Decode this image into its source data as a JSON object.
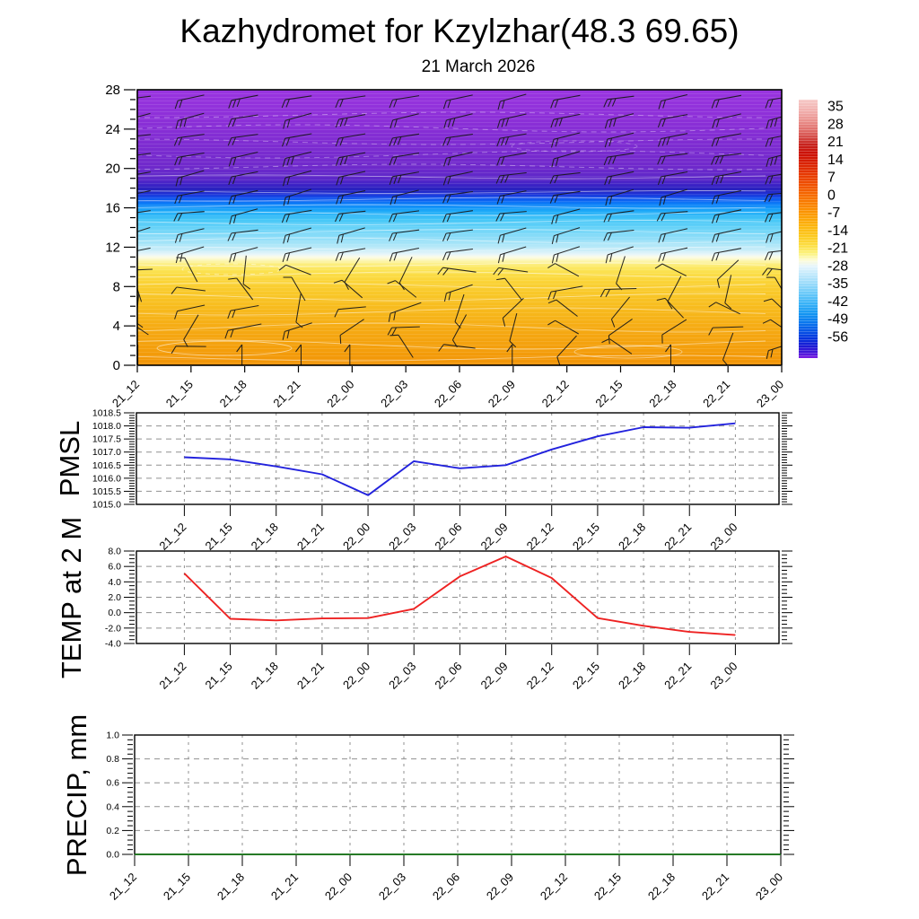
{
  "title": "Kazhydromet for Kzylzhar(48.3 69.65)",
  "subtitle": "21 March 2026",
  "time_labels": [
    "21_12",
    "21_15",
    "21_18",
    "21_21",
    "22_00",
    "22_03",
    "22_06",
    "22_09",
    "22_12",
    "22_15",
    "22_18",
    "22_21",
    "23_00"
  ],
  "chart_data": [
    {
      "type": "heatmap",
      "name": "temperature-height-cross-section",
      "x_labels": [
        "21_12",
        "21_15",
        "21_18",
        "21_21",
        "22_00",
        "22_03",
        "22_06",
        "22_09",
        "22_12",
        "22_15",
        "22_18",
        "22_21",
        "23_00"
      ],
      "ylim": [
        0,
        28
      ],
      "y_tick_labels": [
        "0",
        "4",
        "8",
        "12",
        "16",
        "20",
        "24",
        "28"
      ],
      "grid": false,
      "overlay": "wind-barbs and thin white temperature contour lines",
      "wind_barbs": {
        "columns": 13,
        "rows": 14
      },
      "colorbar": {
        "tick_labels": [
          "35",
          "28",
          "21",
          "14",
          "7",
          "0",
          "-7",
          "-14",
          "-21",
          "-28",
          "-35",
          "-42",
          "-49",
          "-56"
        ],
        "stops": [
          {
            "pos": 0.0,
            "color": "#f6c9c7"
          },
          {
            "pos": 0.045,
            "color": "#f1aeac"
          },
          {
            "pos": 0.085,
            "color": "#e98e8a"
          },
          {
            "pos": 0.12,
            "color": "#df6b67"
          },
          {
            "pos": 0.15,
            "color": "#d24540"
          },
          {
            "pos": 0.175,
            "color": "#c7211c"
          },
          {
            "pos": 0.21,
            "color": "#cc1106"
          },
          {
            "pos": 0.25,
            "color": "#da2404"
          },
          {
            "pos": 0.29,
            "color": "#e73a02"
          },
          {
            "pos": 0.33,
            "color": "#ef5101"
          },
          {
            "pos": 0.37,
            "color": "#f66b00"
          },
          {
            "pos": 0.41,
            "color": "#fa8500"
          },
          {
            "pos": 0.45,
            "color": "#fc9e04"
          },
          {
            "pos": 0.49,
            "color": "#fcb60f"
          },
          {
            "pos": 0.53,
            "color": "#fcca20"
          },
          {
            "pos": 0.565,
            "color": "#fcdf45"
          },
          {
            "pos": 0.595,
            "color": "#fcf27e"
          },
          {
            "pos": 0.622,
            "color": "#fdfcd8"
          },
          {
            "pos": 0.645,
            "color": "#e6f5fc"
          },
          {
            "pos": 0.672,
            "color": "#c6ebfc"
          },
          {
            "pos": 0.71,
            "color": "#9cdcfa"
          },
          {
            "pos": 0.75,
            "color": "#6ac9f9"
          },
          {
            "pos": 0.79,
            "color": "#38b2f7"
          },
          {
            "pos": 0.828,
            "color": "#1496f2"
          },
          {
            "pos": 0.862,
            "color": "#0a78ee"
          },
          {
            "pos": 0.895,
            "color": "#0755e6"
          },
          {
            "pos": 0.925,
            "color": "#0532dd"
          },
          {
            "pos": 0.953,
            "color": "#1a1ad4"
          },
          {
            "pos": 0.978,
            "color": "#4417d8"
          },
          {
            "pos": 1.0,
            "color": "#7c1ce2"
          }
        ]
      },
      "field_stops_top_to_bottom": [
        {
          "pos": 0.0,
          "color": "#9a34e0"
        },
        {
          "pos": 0.1,
          "color": "#8d30d8"
        },
        {
          "pos": 0.2,
          "color": "#7e2cd1"
        },
        {
          "pos": 0.28,
          "color": "#6f29cb"
        },
        {
          "pos": 0.325,
          "color": "#5b27c8"
        },
        {
          "pos": 0.345,
          "color": "#3d23c6"
        },
        {
          "pos": 0.362,
          "color": "#2722bd"
        },
        {
          "pos": 0.378,
          "color": "#1e31d6"
        },
        {
          "pos": 0.395,
          "color": "#0f55ef"
        },
        {
          "pos": 0.415,
          "color": "#0c80f8"
        },
        {
          "pos": 0.44,
          "color": "#1ca9f8"
        },
        {
          "pos": 0.47,
          "color": "#44c6f7"
        },
        {
          "pos": 0.505,
          "color": "#6cd4f8"
        },
        {
          "pos": 0.545,
          "color": "#97e0f8"
        },
        {
          "pos": 0.578,
          "color": "#c1ebf8"
        },
        {
          "pos": 0.597,
          "color": "#e7f5f9"
        },
        {
          "pos": 0.608,
          "color": "#fcfce6"
        },
        {
          "pos": 0.62,
          "color": "#fcf6b4"
        },
        {
          "pos": 0.637,
          "color": "#fcec72"
        },
        {
          "pos": 0.66,
          "color": "#fbe14e"
        },
        {
          "pos": 0.69,
          "color": "#fbd63a"
        },
        {
          "pos": 0.73,
          "color": "#f9ca2b"
        },
        {
          "pos": 0.8,
          "color": "#f7b91c"
        },
        {
          "pos": 0.88,
          "color": "#f5a812"
        },
        {
          "pos": 0.94,
          "color": "#f49f0c"
        },
        {
          "pos": 1.0,
          "color": "#f29406"
        }
      ]
    },
    {
      "type": "line",
      "ylabel": "PMSL",
      "color": "#2222dd",
      "x_labels": [
        "21_12",
        "21_15",
        "21_18",
        "21_21",
        "22_00",
        "22_03",
        "22_06",
        "22_09",
        "22_12",
        "22_15",
        "22_18",
        "22_21",
        "23_00"
      ],
      "values": [
        1016.8,
        1016.72,
        1016.45,
        1016.15,
        1015.35,
        1016.65,
        1016.38,
        1016.5,
        1017.1,
        1017.6,
        1017.95,
        1017.93,
        1018.1
      ],
      "ylim": [
        1015.0,
        1018.5
      ],
      "y_tick_labels": [
        "1015.0",
        "1015.5",
        "1016.0",
        "1016.5",
        "1017.0",
        "1017.5",
        "1018.0",
        "1018.5"
      ],
      "grid": true,
      "legend": "none"
    },
    {
      "type": "line",
      "ylabel": "TEMP at 2 M",
      "color": "#ee2222",
      "x_labels": [
        "21_12",
        "21_15",
        "21_18",
        "21_21",
        "22_00",
        "22_03",
        "22_06",
        "22_09",
        "22_12",
        "22_15",
        "22_18",
        "22_21",
        "23_00"
      ],
      "values": [
        5.1,
        -0.8,
        -1.0,
        -0.75,
        -0.7,
        0.5,
        4.7,
        7.3,
        4.5,
        -0.7,
        -1.7,
        -2.5,
        -2.9
      ],
      "ylim": [
        -4.0,
        8.0
      ],
      "y_tick_labels": [
        "-4.0",
        "-2.0",
        "0.0",
        "2.0",
        "4.0",
        "6.0",
        "8.0"
      ],
      "grid": true,
      "legend": "none"
    },
    {
      "type": "line",
      "ylabel": "PRECIP, mm",
      "color": "#007000",
      "x_labels": [
        "21_12",
        "21_15",
        "21_18",
        "21_21",
        "22_00",
        "22_03",
        "22_06",
        "22_09",
        "22_12",
        "22_15",
        "22_18",
        "22_21",
        "23_00"
      ],
      "values": [
        0,
        0,
        0,
        0,
        0,
        0,
        0,
        0,
        0,
        0,
        0,
        0,
        0
      ],
      "ylim": [
        0.0,
        1.0
      ],
      "y_tick_labels": [
        "0.0",
        "0.2",
        "0.4",
        "0.6",
        "0.8",
        "1.0"
      ],
      "grid": true,
      "legend": "none"
    }
  ]
}
